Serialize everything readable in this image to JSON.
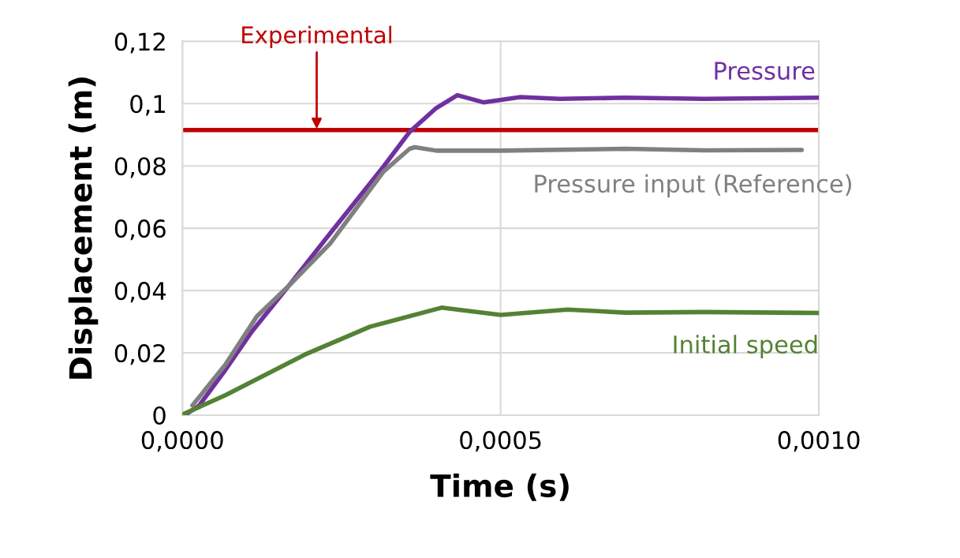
{
  "chart_data": {
    "type": "line",
    "xlabel": "Time (s)",
    "ylabel": "Displacement (m)",
    "xlim": [
      0,
      0.001
    ],
    "ylim": [
      0,
      0.12
    ],
    "xticks": [
      {
        "value": 0,
        "label": "0,0000"
      },
      {
        "value": 0.0005,
        "label": "0,0005"
      },
      {
        "value": 0.001,
        "label": "0,0010"
      }
    ],
    "yticks": [
      {
        "value": 0,
        "label": "0"
      },
      {
        "value": 0.02,
        "label": "0,02"
      },
      {
        "value": 0.04,
        "label": "0,04"
      },
      {
        "value": 0.06,
        "label": "0,06"
      },
      {
        "value": 0.08,
        "label": "0,08"
      },
      {
        "value": 0.1,
        "label": "0,1"
      },
      {
        "value": 0.12,
        "label": "0,12"
      }
    ],
    "grid": true,
    "legend": false,
    "marker": "none",
    "line_style": "solid",
    "series": [
      {
        "name": "Pressure",
        "color": "#7030a0",
        "x": [
          5e-06,
          2.6e-05,
          6.75e-05,
          0.000109,
          0.000167,
          0.000233,
          0.000316,
          0.000357,
          0.000399,
          0.000432,
          0.000473,
          0.000531,
          0.000593,
          0.000696,
          0.00082,
          0.001
        ],
        "values": [
          0.0002,
          0.003,
          0.0145,
          0.0268,
          0.0415,
          0.0586,
          0.0798,
          0.0909,
          0.0986,
          0.1027,
          0.1004,
          0.1021,
          0.1015,
          0.1019,
          0.1015,
          0.1019
        ]
      },
      {
        "name": "Pressure input (Reference)",
        "color": "#808080",
        "x": [
          1.57e-05,
          6.75e-05,
          0.000117,
          0.000167,
          0.000233,
          0.000316,
          0.000357,
          0.000365,
          0.000399,
          0.0005,
          0.000696,
          0.00082,
          0.000973
        ],
        "values": [
          0.0031,
          0.0162,
          0.0317,
          0.0415,
          0.0553,
          0.0782,
          0.0855,
          0.086,
          0.0849,
          0.0849,
          0.0855,
          0.085,
          0.0851
        ]
      },
      {
        "name": "Initial speed",
        "color": "#548235",
        "x": [
          0,
          6.75e-05,
          0.000192,
          0.000295,
          0.000407,
          0.0005,
          0.000605,
          0.000696,
          0.00082,
          0.001
        ],
        "values": [
          0.0002,
          0.0064,
          0.0194,
          0.0284,
          0.0345,
          0.0322,
          0.0339,
          0.0329,
          0.0331,
          0.0328
        ]
      }
    ],
    "ref_lines": [
      {
        "axis": "y",
        "value": 0.0915,
        "color": "#c00000",
        "line_style": "solid"
      }
    ],
    "annotations": [
      {
        "text": "Experimental",
        "x": 0.000211,
        "y": 0.0915
      }
    ]
  }
}
